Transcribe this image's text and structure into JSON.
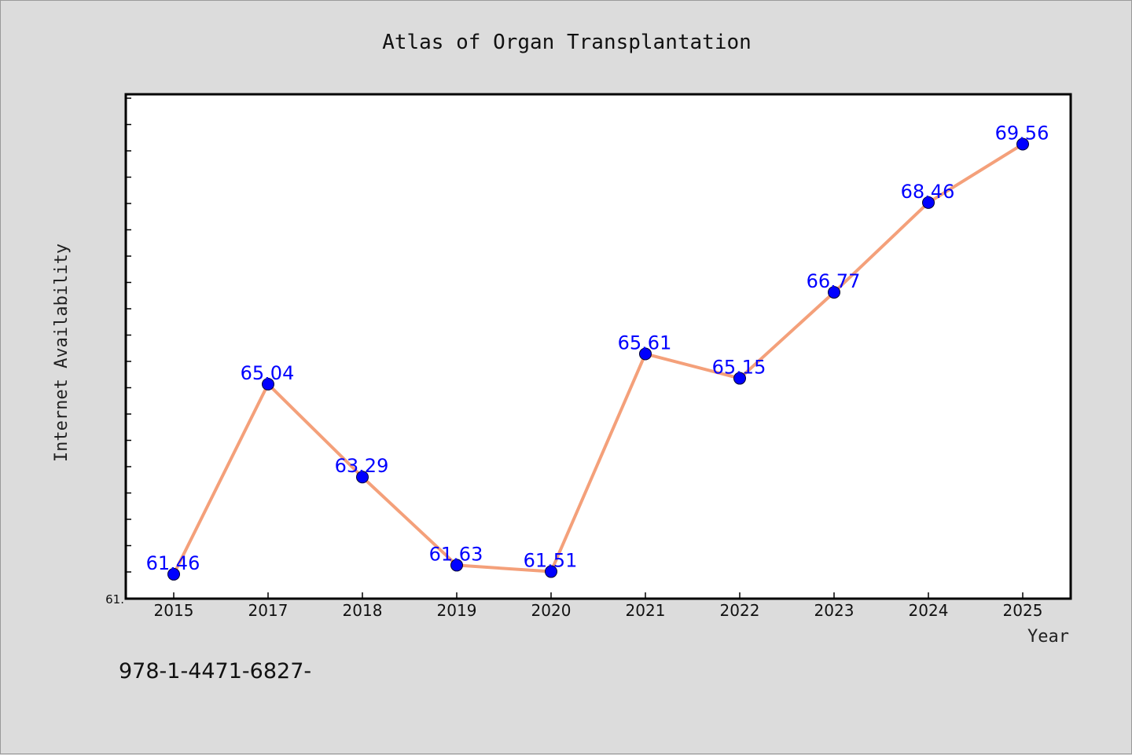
{
  "chart_data": {
    "type": "line",
    "title": "Atlas of Organ Transplantation",
    "xlabel": "Year",
    "ylabel": "Internet Availability",
    "categories": [
      "2015",
      "2017",
      "2018",
      "2019",
      "2020",
      "2021",
      "2022",
      "2023",
      "2024",
      "2025"
    ],
    "values": [
      61.46,
      65.04,
      63.29,
      61.63,
      61.51,
      65.61,
      65.15,
      66.77,
      68.46,
      69.56
    ],
    "data_labels": [
      "61.46",
      "65.04",
      "63.29",
      "61.63",
      "61.51",
      "65.61",
      "65.15",
      "66.77",
      "68.46",
      "69.56"
    ],
    "ylim": [
      61.0,
      70.5
    ],
    "y_tick_label": "61.",
    "grid": false,
    "line_color": "#f4a07a",
    "marker_color": "#0000ff",
    "label_color": "#0000ff"
  },
  "footer": {
    "isbn": "978-1-4471-6827-"
  }
}
